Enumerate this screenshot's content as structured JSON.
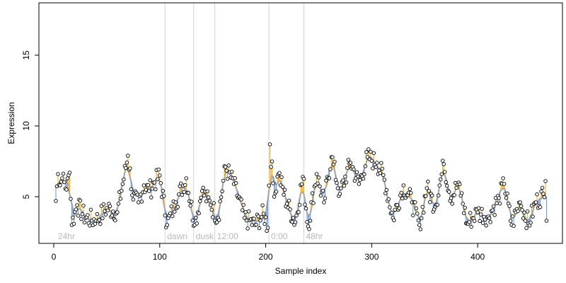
{
  "chart_data": {
    "type": "scatter",
    "title": "",
    "xlabel": "Sample index",
    "ylabel": "Expression",
    "xlim": [
      -14,
      480
    ],
    "ylim": [
      1.7,
      18.7
    ],
    "x_ticks": [
      0,
      100,
      200,
      300,
      400
    ],
    "y_ticks": [
      5,
      10,
      15
    ],
    "grid": false,
    "legend": "none",
    "colors": {
      "trend": "#a9a9a9",
      "above_segment": "#ffa500",
      "below_segment": "#6495ed",
      "point_stroke": "#000000",
      "point_fill": "#ffffff",
      "region_line": "#d3d3d3",
      "region_text": "#b8b8b8"
    },
    "regions": [
      {
        "label": "24hr",
        "x": 2
      },
      {
        "label": "dawn",
        "x": 105
      },
      {
        "label": "dusk",
        "x": 132
      },
      {
        "label": "12:00",
        "x": 152
      },
      {
        "label": "0:00",
        "x": 203
      },
      {
        "label": "48hr",
        "x": 236
      }
    ],
    "region_lines": [
      105,
      132,
      152,
      203,
      236
    ],
    "key_points": [
      {
        "x": 2,
        "y": 4.7
      },
      {
        "x": 4,
        "y": 6.6
      },
      {
        "x": 6,
        "y": 5.8
      },
      {
        "x": 8,
        "y": 6.3
      },
      {
        "x": 12,
        "y": 5.5
      },
      {
        "x": 15,
        "y": 6.7
      },
      {
        "x": 17,
        "y": 3.0
      },
      {
        "x": 22,
        "y": 4.4
      },
      {
        "x": 30,
        "y": 3.5
      },
      {
        "x": 40,
        "y": 3.3
      },
      {
        "x": 50,
        "y": 4.2
      },
      {
        "x": 60,
        "y": 3.9
      },
      {
        "x": 70,
        "y": 7.9
      },
      {
        "x": 75,
        "y": 4.8
      },
      {
        "x": 80,
        "y": 4.6
      },
      {
        "x": 85,
        "y": 5.8
      },
      {
        "x": 90,
        "y": 5.4
      },
      {
        "x": 95,
        "y": 6.0
      },
      {
        "x": 100,
        "y": 6.5
      },
      {
        "x": 107,
        "y": 3.0
      },
      {
        "x": 115,
        "y": 4.6
      },
      {
        "x": 125,
        "y": 6.3
      },
      {
        "x": 133,
        "y": 3.0
      },
      {
        "x": 140,
        "y": 5.4
      },
      {
        "x": 148,
        "y": 4.4
      },
      {
        "x": 155,
        "y": 3.5
      },
      {
        "x": 162,
        "y": 7.1
      },
      {
        "x": 170,
        "y": 5.9
      },
      {
        "x": 180,
        "y": 3.5
      },
      {
        "x": 190,
        "y": 3.0
      },
      {
        "x": 198,
        "y": 3.8
      },
      {
        "x": 202,
        "y": 2.8
      },
      {
        "x": 204,
        "y": 8.7
      },
      {
        "x": 208,
        "y": 5.0
      },
      {
        "x": 212,
        "y": 6.6
      },
      {
        "x": 220,
        "y": 4.5
      },
      {
        "x": 228,
        "y": 3.2
      },
      {
        "x": 235,
        "y": 6.4
      },
      {
        "x": 240,
        "y": 2.9
      },
      {
        "x": 248,
        "y": 6.6
      },
      {
        "x": 255,
        "y": 4.6
      },
      {
        "x": 262,
        "y": 7.8
      },
      {
        "x": 270,
        "y": 5.2
      },
      {
        "x": 280,
        "y": 7.4
      },
      {
        "x": 288,
        "y": 5.9
      },
      {
        "x": 296,
        "y": 7.8
      },
      {
        "x": 305,
        "y": 7.4
      },
      {
        "x": 312,
        "y": 6.2
      },
      {
        "x": 320,
        "y": 3.5
      },
      {
        "x": 330,
        "y": 5.8
      },
      {
        "x": 338,
        "y": 4.6
      },
      {
        "x": 345,
        "y": 3.0
      },
      {
        "x": 352,
        "y": 5.6
      },
      {
        "x": 360,
        "y": 4.3
      },
      {
        "x": 368,
        "y": 7.3
      },
      {
        "x": 375,
        "y": 4.9
      },
      {
        "x": 382,
        "y": 6.0
      },
      {
        "x": 390,
        "y": 3.1
      },
      {
        "x": 400,
        "y": 3.9
      },
      {
        "x": 410,
        "y": 3.6
      },
      {
        "x": 420,
        "y": 4.9
      },
      {
        "x": 425,
        "y": 5.9
      },
      {
        "x": 432,
        "y": 3.0
      },
      {
        "x": 440,
        "y": 4.6
      },
      {
        "x": 448,
        "y": 3.1
      },
      {
        "x": 455,
        "y": 4.6
      },
      {
        "x": 462,
        "y": 5.2
      },
      {
        "x": 464,
        "y": 6.1
      },
      {
        "x": 465,
        "y": 3.3
      }
    ]
  }
}
